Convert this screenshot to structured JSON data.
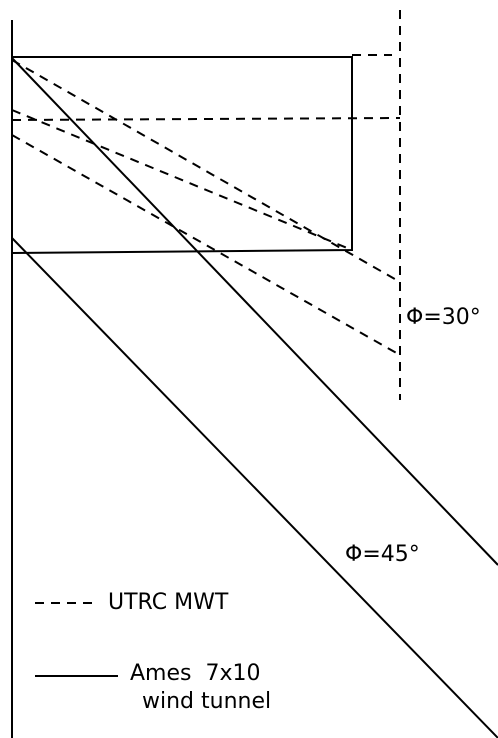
{
  "labels": {
    "phi_30": "Φ=30°",
    "phi_45": "Φ=45°"
  },
  "legend": {
    "dashed": "UTRC MWT",
    "solid_line1": "Ames  7x10",
    "solid_line2": "wind tunnel"
  }
}
